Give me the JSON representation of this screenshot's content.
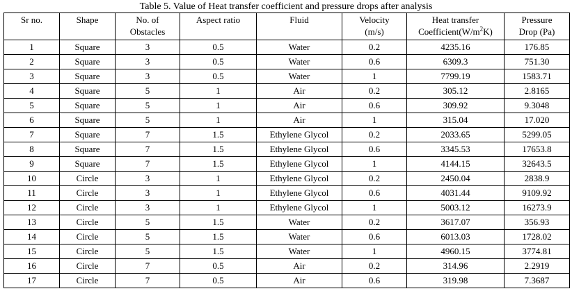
{
  "caption": "Table 5. Value of Heat transfer coefficient and pressure drops after analysis",
  "headers": [
    {
      "line1": "Sr no.",
      "line2": ""
    },
    {
      "line1": "Shape",
      "line2": ""
    },
    {
      "line1": "No. of",
      "line2": "Obstacles"
    },
    {
      "line1": "Aspect ratio",
      "line2": ""
    },
    {
      "line1": "Fluid",
      "line2": ""
    },
    {
      "line1": "Velocity",
      "line2": "(m/s)"
    },
    {
      "line1": "Heat transfer",
      "line2_pre": "Coefficient(W/m",
      "line2_sup": "2",
      "line2_post": "K)"
    },
    {
      "line1": "Pressure",
      "line2": "Drop (Pa)"
    }
  ],
  "rows": [
    [
      "1",
      "Square",
      "3",
      "0.5",
      "Water",
      "0.2",
      "4235.16",
      "176.85"
    ],
    [
      "2",
      "Square",
      "3",
      "0.5",
      "Water",
      "0.6",
      "6309.3",
      "751.30"
    ],
    [
      "3",
      "Square",
      "3",
      "0.5",
      "Water",
      "1",
      "7799.19",
      "1583.71"
    ],
    [
      "4",
      "Square",
      "5",
      "1",
      "Air",
      "0.2",
      "305.12",
      "2.8165"
    ],
    [
      "5",
      "Square",
      "5",
      "1",
      "Air",
      "0.6",
      "309.92",
      "9.3048"
    ],
    [
      "6",
      "Square",
      "5",
      "1",
      "Air",
      "1",
      "315.04",
      "17.020"
    ],
    [
      "7",
      "Square",
      "7",
      "1.5",
      "Ethylene Glycol",
      "0.2",
      "2033.65",
      "5299.05"
    ],
    [
      "8",
      "Square",
      "7",
      "1.5",
      "Ethylene Glycol",
      "0.6",
      "3345.53",
      "17653.8"
    ],
    [
      "9",
      "Square",
      "7",
      "1.5",
      "Ethylene Glycol",
      "1",
      "4144.15",
      "32643.5"
    ],
    [
      "10",
      "Circle",
      "3",
      "1",
      "Ethylene Glycol",
      "0.2",
      "2450.04",
      "2838.9"
    ],
    [
      "11",
      "Circle",
      "3",
      "1",
      "Ethylene Glycol",
      "0.6",
      "4031.44",
      "9109.92"
    ],
    [
      "12",
      "Circle",
      "3",
      "1",
      "Ethylene Glycol",
      "1",
      "5003.12",
      "16273.9"
    ],
    [
      "13",
      "Circle",
      "5",
      "1.5",
      "Water",
      "0.2",
      "3617.07",
      "356.93"
    ],
    [
      "14",
      "Circle",
      "5",
      "1.5",
      "Water",
      "0.6",
      "6013.03",
      "1728.02"
    ],
    [
      "15",
      "Circle",
      "5",
      "1.5",
      "Water",
      "1",
      "4960.15",
      "3774.81"
    ],
    [
      "16",
      "Circle",
      "7",
      "0.5",
      "Air",
      "0.2",
      "314.96",
      "2.2919"
    ],
    [
      "17",
      "Circle",
      "7",
      "0.5",
      "Air",
      "0.6",
      "319.98",
      "7.3687"
    ]
  ]
}
